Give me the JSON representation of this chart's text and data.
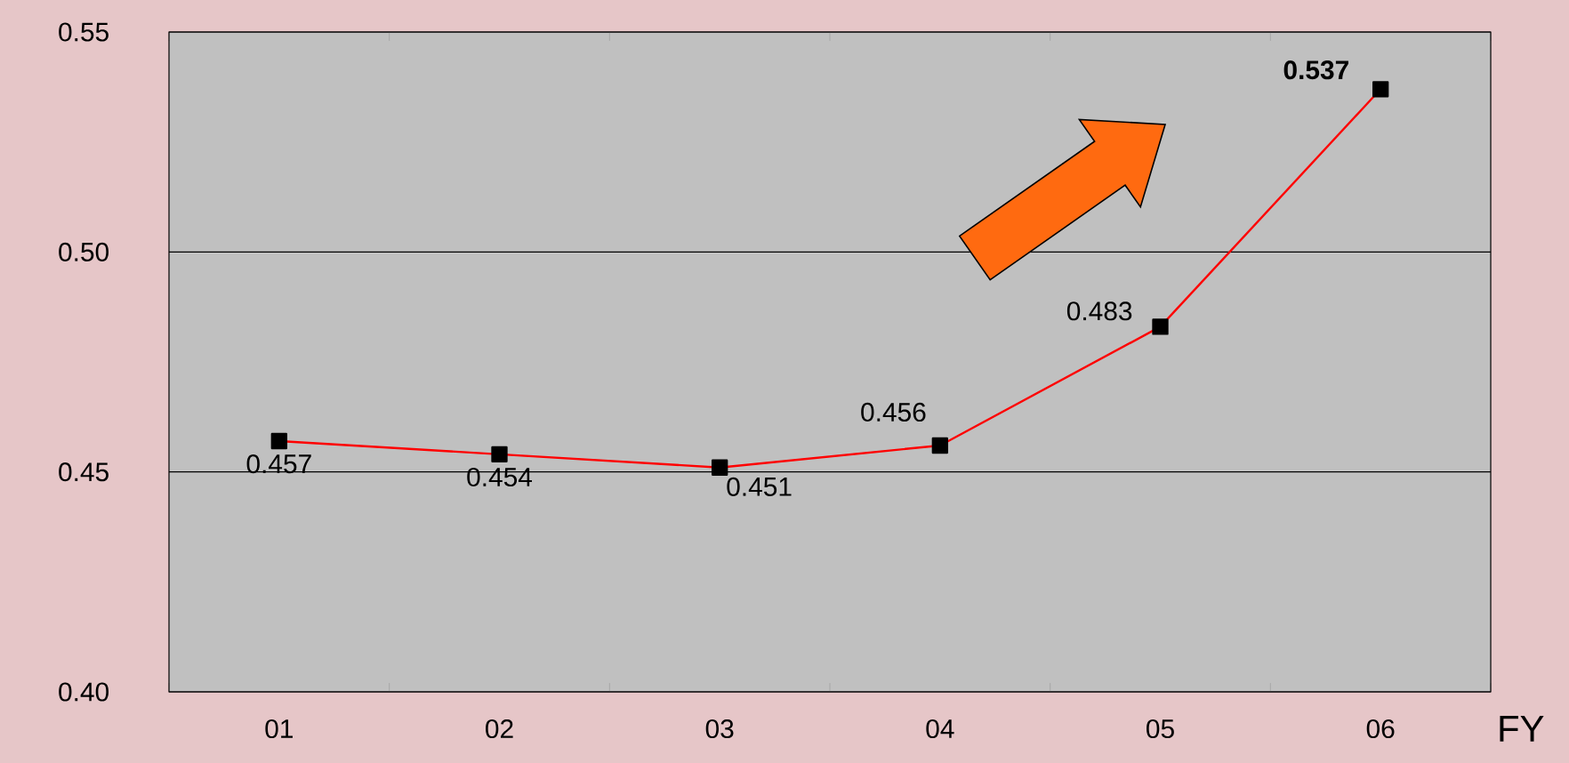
{
  "chart_data": {
    "type": "line",
    "xlabel": "FY",
    "categories": [
      "01",
      "02",
      "03",
      "04",
      "05",
      "06"
    ],
    "values": [
      0.457,
      0.454,
      0.451,
      0.456,
      0.483,
      0.537
    ],
    "color": "#ff0000",
    "marker": "square",
    "grid": "y",
    "data_labels": true,
    "ylim": [
      0.4,
      0.55
    ],
    "yticks": [
      {
        "value": 0.4,
        "label": "0.40"
      },
      {
        "value": 0.45,
        "label": "0.45"
      },
      {
        "value": 0.5,
        "label": "0.50"
      },
      {
        "value": 0.55,
        "label": "0.55"
      }
    ]
  }
}
